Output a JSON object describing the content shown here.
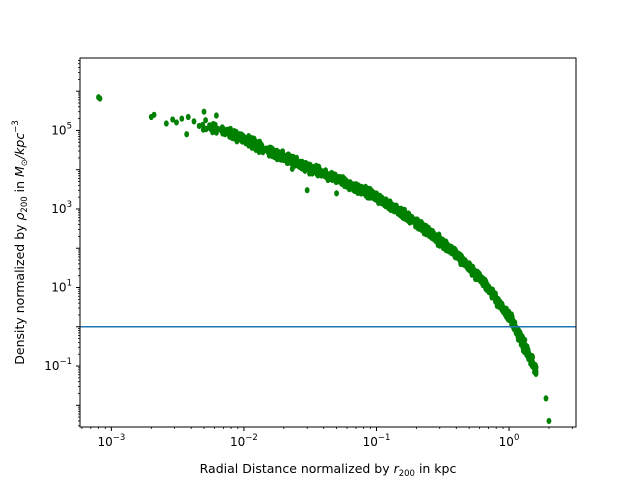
{
  "chart_data": {
    "type": "scatter",
    "title": "",
    "xlabel": {
      "text": "Radial Distance normalized by r200 in kpc",
      "parts": [
        "Radial Distance normalized by ",
        "r",
        "200",
        " in kpc"
      ]
    },
    "ylabel": {
      "text": "Density normalized by ρ200 in M⊙/kpc−3",
      "parts": [
        "Density normalized by ",
        "ρ",
        "200",
        " in ",
        "M",
        "⊙",
        "/kpc",
        "−3"
      ]
    },
    "xscale": "log",
    "yscale": "log",
    "xlim": [
      0.00058,
      3.2
    ],
    "ylim": [
      0.0028,
      7000000
    ],
    "x_ticks": [
      {
        "value": 0.001,
        "base": "10",
        "exp": "−3"
      },
      {
        "value": 0.01,
        "base": "10",
        "exp": "−2"
      },
      {
        "value": 0.1,
        "base": "10",
        "exp": "−1"
      },
      {
        "value": 1,
        "base": "10",
        "exp": "0"
      }
    ],
    "y_ticks": [
      {
        "value": 0.1,
        "base": "10",
        "exp": "−1"
      },
      {
        "value": 10,
        "base": "10",
        "exp": "1"
      },
      {
        "value": 1000,
        "base": "10",
        "exp": "3"
      },
      {
        "value": 100000,
        "base": "10",
        "exp": "5"
      }
    ],
    "grid": false,
    "legend": "none",
    "series": [
      {
        "color": "#008000",
        "marker": "o",
        "profile_points": [
          [
            0.0008,
            650000
          ],
          [
            0.002,
            240000
          ],
          [
            0.003,
            200000
          ],
          [
            0.005,
            150000
          ],
          [
            0.01,
            60000
          ],
          [
            0.02,
            20000
          ],
          [
            0.05,
            6000
          ],
          [
            0.1,
            2000
          ],
          [
            0.2,
            450
          ],
          [
            0.4,
            70
          ],
          [
            0.6,
            18
          ],
          [
            0.8,
            5
          ],
          [
            1.0,
            1.8
          ],
          [
            1.2,
            0.6
          ],
          [
            1.5,
            0.12
          ],
          [
            1.8,
            0.03
          ],
          [
            2.0,
            0.005
          ]
        ],
        "isolated_points": [
          [
            0.0008,
            700000
          ],
          [
            0.00082,
            650000
          ],
          [
            0.002,
            220000
          ],
          [
            0.0021,
            250000
          ],
          [
            0.0026,
            150000
          ],
          [
            0.0029,
            190000
          ],
          [
            0.0031,
            160000
          ],
          [
            0.0034,
            200000
          ],
          [
            0.0037,
            80000
          ],
          [
            0.0038,
            220000
          ],
          [
            0.0042,
            170000
          ],
          [
            0.0046,
            130000
          ],
          [
            0.005,
            300000
          ],
          [
            0.0052,
            110000
          ],
          [
            0.0058,
            90000
          ],
          [
            0.0062,
            240000
          ],
          [
            0.03,
            3000
          ],
          [
            0.05,
            2500
          ],
          [
            1.9,
            0.015
          ],
          [
            2.0,
            0.004
          ]
        ]
      },
      {
        "color": "#1f77b4",
        "type": "hline",
        "y": 1
      }
    ]
  }
}
